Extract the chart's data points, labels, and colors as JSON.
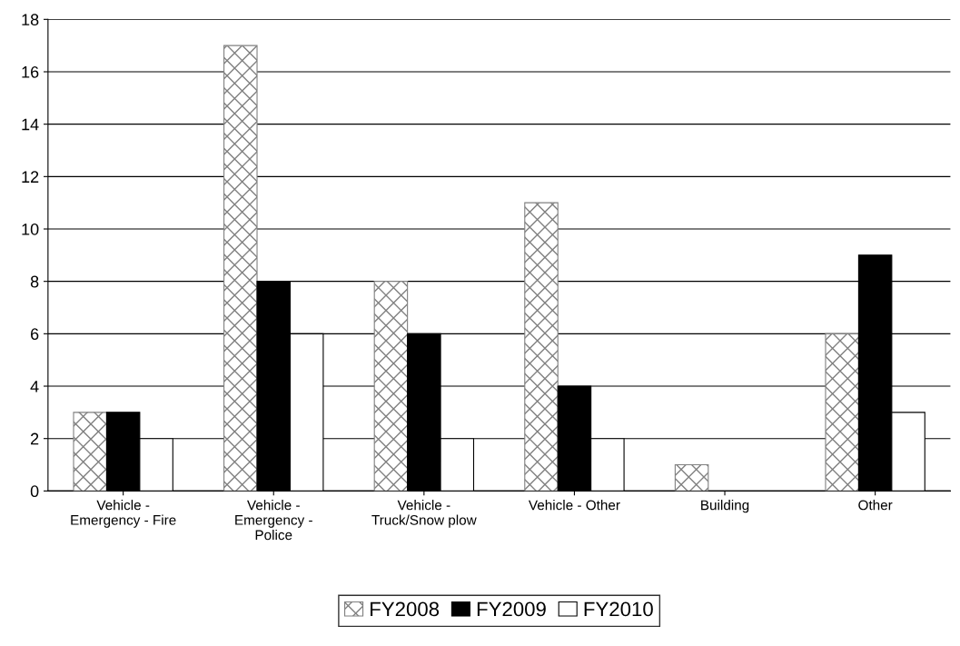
{
  "chart_data": {
    "type": "bar",
    "categories": [
      "Vehicle -\nEmergency - Fire",
      "Vehicle -\nEmergency -\nPolice",
      "Vehicle -\nTruck/Snow plow",
      "Vehicle - Other",
      "Building",
      "Other"
    ],
    "series": [
      {
        "name": "FY2008",
        "color": "#808080",
        "values": [
          3,
          17,
          8,
          11,
          1,
          6
        ]
      },
      {
        "name": "FY2009",
        "color": "#000000",
        "values": [
          3,
          8,
          6,
          4,
          0,
          9
        ]
      },
      {
        "name": "FY2010",
        "color": "#ffffff",
        "values": [
          2,
          6,
          2,
          2,
          0,
          3
        ]
      }
    ],
    "ylim": [
      0,
      18
    ],
    "yticks": [
      0,
      2,
      4,
      6,
      8,
      10,
      12,
      14,
      16,
      18
    ],
    "grid": "y",
    "legend": "bottom"
  }
}
